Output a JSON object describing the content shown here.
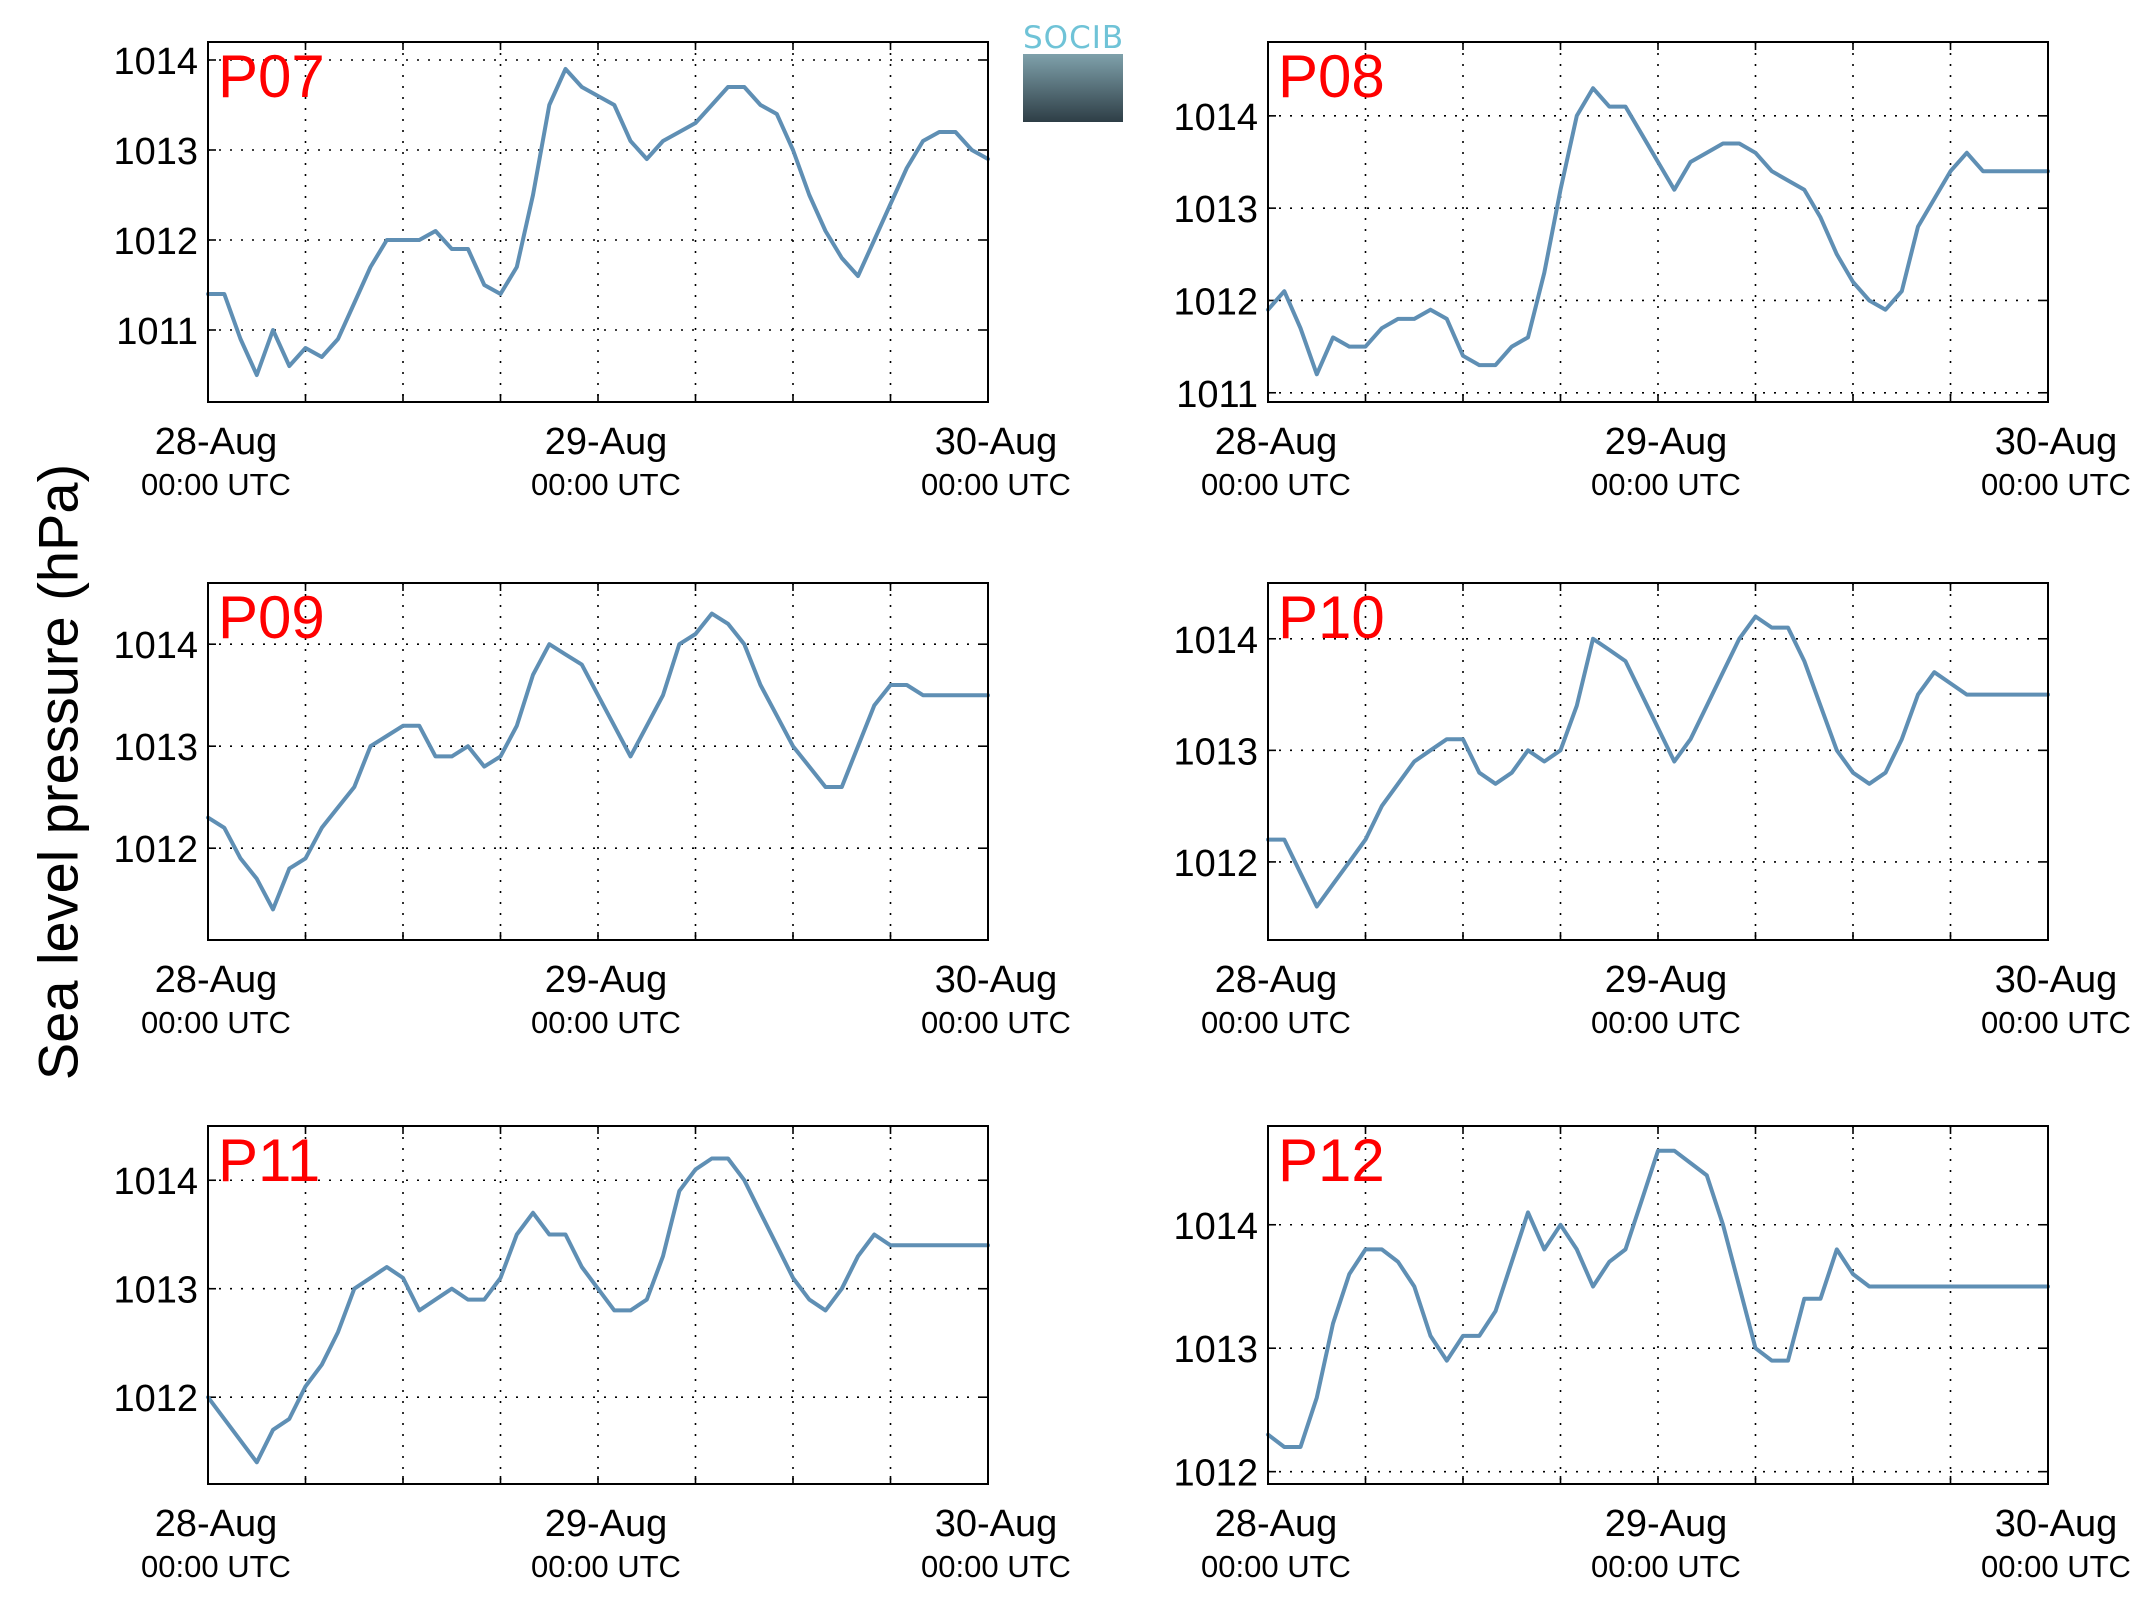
{
  "figure": {
    "ylabel": "Sea level pressure (hPa)",
    "logo": {
      "text": "SOCIB",
      "text_color": "#6fc3d7",
      "gradient_top": "#7fa1ab",
      "gradient_bottom": "#2e3e46"
    },
    "line_color": "#5f8fb4",
    "title_color": "#ff0000"
  },
  "chart_data": [
    {
      "type": "line",
      "title": "P07",
      "xlabel": "",
      "ylabel": "",
      "xlim": [
        "28-Aug 00:00 UTC",
        "30-Aug 00:00 UTC"
      ],
      "x_hours": [
        0,
        1,
        2,
        3,
        4,
        5,
        6,
        7,
        8,
        9,
        10,
        11,
        12,
        13,
        14,
        15,
        16,
        17,
        18,
        19,
        20,
        21,
        22,
        23,
        24,
        25,
        26,
        27,
        28,
        29,
        30,
        31,
        32,
        33,
        34,
        35,
        36,
        37,
        38,
        39,
        40,
        41,
        42,
        43,
        44,
        45,
        46,
        47,
        48
      ],
      "values": [
        1011.4,
        1011.4,
        1010.9,
        1010.5,
        1011.0,
        1010.6,
        1010.8,
        1010.7,
        1010.9,
        1011.3,
        1011.7,
        1012.0,
        1012.0,
        1012.0,
        1012.1,
        1011.9,
        1011.9,
        1011.5,
        1011.4,
        1011.7,
        1012.5,
        1013.5,
        1013.9,
        1013.7,
        1013.6,
        1013.5,
        1013.1,
        1012.9,
        1013.1,
        1013.2,
        1013.3,
        1013.5,
        1013.7,
        1013.7,
        1013.5,
        1013.4,
        1013.0,
        1012.5,
        1012.1,
        1011.8,
        1011.6,
        1012.0,
        1012.4,
        1012.8,
        1013.1,
        1013.2,
        1013.2,
        1013.0,
        1012.9
      ],
      "ylim": [
        1010.2,
        1014.2
      ],
      "yticks": [
        1011,
        1012,
        1013,
        1014
      ],
      "xticks": [
        {
          "date": "28-Aug",
          "time": "00:00 UTC"
        },
        {
          "date": "29-Aug",
          "time": "00:00 UTC"
        },
        {
          "date": "30-Aug",
          "time": "00:00 UTC"
        }
      ],
      "grid": true
    },
    {
      "type": "line",
      "title": "P08",
      "xlabel": "",
      "ylabel": "",
      "xlim": [
        "28-Aug 00:00 UTC",
        "30-Aug 00:00 UTC"
      ],
      "x_hours": [
        0,
        1,
        2,
        3,
        4,
        5,
        6,
        7,
        8,
        9,
        10,
        11,
        12,
        13,
        14,
        15,
        16,
        17,
        18,
        19,
        20,
        21,
        22,
        23,
        24,
        25,
        26,
        27,
        28,
        29,
        30,
        31,
        32,
        33,
        34,
        35,
        36,
        37,
        38,
        39,
        40,
        41,
        42,
        43,
        44,
        45,
        46,
        47,
        48
      ],
      "values": [
        1011.9,
        1012.1,
        1011.7,
        1011.2,
        1011.6,
        1011.5,
        1011.5,
        1011.7,
        1011.8,
        1011.8,
        1011.9,
        1011.8,
        1011.4,
        1011.3,
        1011.3,
        1011.5,
        1011.6,
        1012.3,
        1013.2,
        1014.0,
        1014.3,
        1014.1,
        1014.1,
        1013.8,
        1013.5,
        1013.2,
        1013.5,
        1013.6,
        1013.7,
        1013.7,
        1013.6,
        1013.4,
        1013.3,
        1013.2,
        1012.9,
        1012.5,
        1012.2,
        1012.0,
        1011.9,
        1012.1,
        1012.8,
        1013.1,
        1013.4,
        1013.6,
        1013.4,
        1013.4,
        1013.4,
        1013.4,
        1013.4
      ],
      "ylim": [
        1010.9,
        1014.8
      ],
      "yticks": [
        1011,
        1012,
        1013,
        1014
      ],
      "xticks": [
        {
          "date": "28-Aug",
          "time": "00:00 UTC"
        },
        {
          "date": "29-Aug",
          "time": "00:00 UTC"
        },
        {
          "date": "30-Aug",
          "time": "00:00 UTC"
        }
      ],
      "grid": true
    },
    {
      "type": "line",
      "title": "P09",
      "xlabel": "",
      "ylabel": "",
      "xlim": [
        "28-Aug 00:00 UTC",
        "30-Aug 00:00 UTC"
      ],
      "x_hours": [
        0,
        1,
        2,
        3,
        4,
        5,
        6,
        7,
        8,
        9,
        10,
        11,
        12,
        13,
        14,
        15,
        16,
        17,
        18,
        19,
        20,
        21,
        22,
        23,
        24,
        25,
        26,
        27,
        28,
        29,
        30,
        31,
        32,
        33,
        34,
        35,
        36,
        37,
        38,
        39,
        40,
        41,
        42,
        43,
        44,
        45,
        46,
        47,
        48
      ],
      "values": [
        1012.3,
        1012.2,
        1011.9,
        1011.7,
        1011.4,
        1011.8,
        1011.9,
        1012.2,
        1012.4,
        1012.6,
        1013.0,
        1013.1,
        1013.2,
        1013.2,
        1012.9,
        1012.9,
        1013.0,
        1012.8,
        1012.9,
        1013.2,
        1013.7,
        1014.0,
        1013.9,
        1013.8,
        1013.5,
        1013.2,
        1012.9,
        1013.2,
        1013.5,
        1014.0,
        1014.1,
        1014.3,
        1014.2,
        1014.0,
        1013.6,
        1013.3,
        1013.0,
        1012.8,
        1012.6,
        1012.6,
        1013.0,
        1013.4,
        1013.6,
        1013.6,
        1013.5,
        1013.5,
        1013.5,
        1013.5,
        1013.5
      ],
      "ylim": [
        1011.1,
        1014.6
      ],
      "yticks": [
        1012,
        1013,
        1014
      ],
      "xticks": [
        {
          "date": "28-Aug",
          "time": "00:00 UTC"
        },
        {
          "date": "29-Aug",
          "time": "00:00 UTC"
        },
        {
          "date": "30-Aug",
          "time": "00:00 UTC"
        }
      ],
      "grid": true
    },
    {
      "type": "line",
      "title": "P10",
      "xlabel": "",
      "ylabel": "",
      "xlim": [
        "28-Aug 00:00 UTC",
        "30-Aug 00:00 UTC"
      ],
      "x_hours": [
        0,
        1,
        2,
        3,
        4,
        5,
        6,
        7,
        8,
        9,
        10,
        11,
        12,
        13,
        14,
        15,
        16,
        17,
        18,
        19,
        20,
        21,
        22,
        23,
        24,
        25,
        26,
        27,
        28,
        29,
        30,
        31,
        32,
        33,
        34,
        35,
        36,
        37,
        38,
        39,
        40,
        41,
        42,
        43,
        44,
        45,
        46,
        47,
        48
      ],
      "values": [
        1012.2,
        1012.2,
        1011.9,
        1011.6,
        1011.8,
        1012.0,
        1012.2,
        1012.5,
        1012.7,
        1012.9,
        1013.0,
        1013.1,
        1013.1,
        1012.8,
        1012.7,
        1012.8,
        1013.0,
        1012.9,
        1013.0,
        1013.4,
        1014.0,
        1013.9,
        1013.8,
        1013.5,
        1013.2,
        1012.9,
        1013.1,
        1013.4,
        1013.7,
        1014.0,
        1014.2,
        1014.1,
        1014.1,
        1013.8,
        1013.4,
        1013.0,
        1012.8,
        1012.7,
        1012.8,
        1013.1,
        1013.5,
        1013.7,
        1013.6,
        1013.5,
        1013.5,
        1013.5,
        1013.5,
        1013.5,
        1013.5
      ],
      "ylim": [
        1011.3,
        1014.5
      ],
      "yticks": [
        1012,
        1013,
        1014
      ],
      "xticks": [
        {
          "date": "28-Aug",
          "time": "00:00 UTC"
        },
        {
          "date": "29-Aug",
          "time": "00:00 UTC"
        },
        {
          "date": "30-Aug",
          "time": "00:00 UTC"
        }
      ],
      "grid": true
    },
    {
      "type": "line",
      "title": "P11",
      "xlabel": "",
      "ylabel": "",
      "xlim": [
        "28-Aug 00:00 UTC",
        "30-Aug 00:00 UTC"
      ],
      "x_hours": [
        0,
        1,
        2,
        3,
        4,
        5,
        6,
        7,
        8,
        9,
        10,
        11,
        12,
        13,
        14,
        15,
        16,
        17,
        18,
        19,
        20,
        21,
        22,
        23,
        24,
        25,
        26,
        27,
        28,
        29,
        30,
        31,
        32,
        33,
        34,
        35,
        36,
        37,
        38,
        39,
        40,
        41,
        42,
        43,
        44,
        45,
        46,
        47,
        48
      ],
      "values": [
        1012.0,
        1011.8,
        1011.6,
        1011.4,
        1011.7,
        1011.8,
        1012.1,
        1012.3,
        1012.6,
        1013.0,
        1013.1,
        1013.2,
        1013.1,
        1012.8,
        1012.9,
        1013.0,
        1012.9,
        1012.9,
        1013.1,
        1013.5,
        1013.7,
        1013.5,
        1013.5,
        1013.2,
        1013.0,
        1012.8,
        1012.8,
        1012.9,
        1013.3,
        1013.9,
        1014.1,
        1014.2,
        1014.2,
        1014.0,
        1013.7,
        1013.4,
        1013.1,
        1012.9,
        1012.8,
        1013.0,
        1013.3,
        1013.5,
        1013.4,
        1013.4,
        1013.4,
        1013.4,
        1013.4,
        1013.4,
        1013.4
      ],
      "ylim": [
        1011.2,
        1014.5
      ],
      "yticks": [
        1012,
        1013,
        1014
      ],
      "xticks": [
        {
          "date": "28-Aug",
          "time": "00:00 UTC"
        },
        {
          "date": "29-Aug",
          "time": "00:00 UTC"
        },
        {
          "date": "30-Aug",
          "time": "00:00 UTC"
        }
      ],
      "grid": true
    },
    {
      "type": "line",
      "title": "P12",
      "xlabel": "",
      "ylabel": "",
      "xlim": [
        "28-Aug 00:00 UTC",
        "30-Aug 00:00 UTC"
      ],
      "x_hours": [
        0,
        1,
        2,
        3,
        4,
        5,
        6,
        7,
        8,
        9,
        10,
        11,
        12,
        13,
        14,
        15,
        16,
        17,
        18,
        19,
        20,
        21,
        22,
        23,
        24,
        25,
        26,
        27,
        28,
        29,
        30,
        31,
        32,
        33,
        34,
        35,
        36,
        37,
        38,
        39,
        40,
        41,
        42,
        43,
        44,
        45,
        46,
        47,
        48
      ],
      "values": [
        1012.3,
        1012.2,
        1012.2,
        1012.6,
        1013.2,
        1013.6,
        1013.8,
        1013.8,
        1013.7,
        1013.5,
        1013.1,
        1012.9,
        1013.1,
        1013.1,
        1013.3,
        1013.7,
        1014.1,
        1013.8,
        1014.0,
        1013.8,
        1013.5,
        1013.7,
        1013.8,
        1014.2,
        1014.6,
        1014.6,
        1014.5,
        1014.4,
        1014.0,
        1013.5,
        1013.0,
        1012.9,
        1012.9,
        1013.4,
        1013.4,
        1013.8,
        1013.6,
        1013.5,
        1013.5,
        1013.5,
        1013.5,
        1013.5,
        1013.5,
        1013.5,
        1013.5,
        1013.5,
        1013.5,
        1013.5,
        1013.5
      ],
      "ylim": [
        1011.9,
        1014.8
      ],
      "yticks": [
        1012,
        1013,
        1014
      ],
      "xticks": [
        {
          "date": "28-Aug",
          "time": "00:00 UTC"
        },
        {
          "date": "29-Aug",
          "time": "00:00 UTC"
        },
        {
          "date": "30-Aug",
          "time": "00:00 UTC"
        }
      ],
      "grid": true
    }
  ]
}
